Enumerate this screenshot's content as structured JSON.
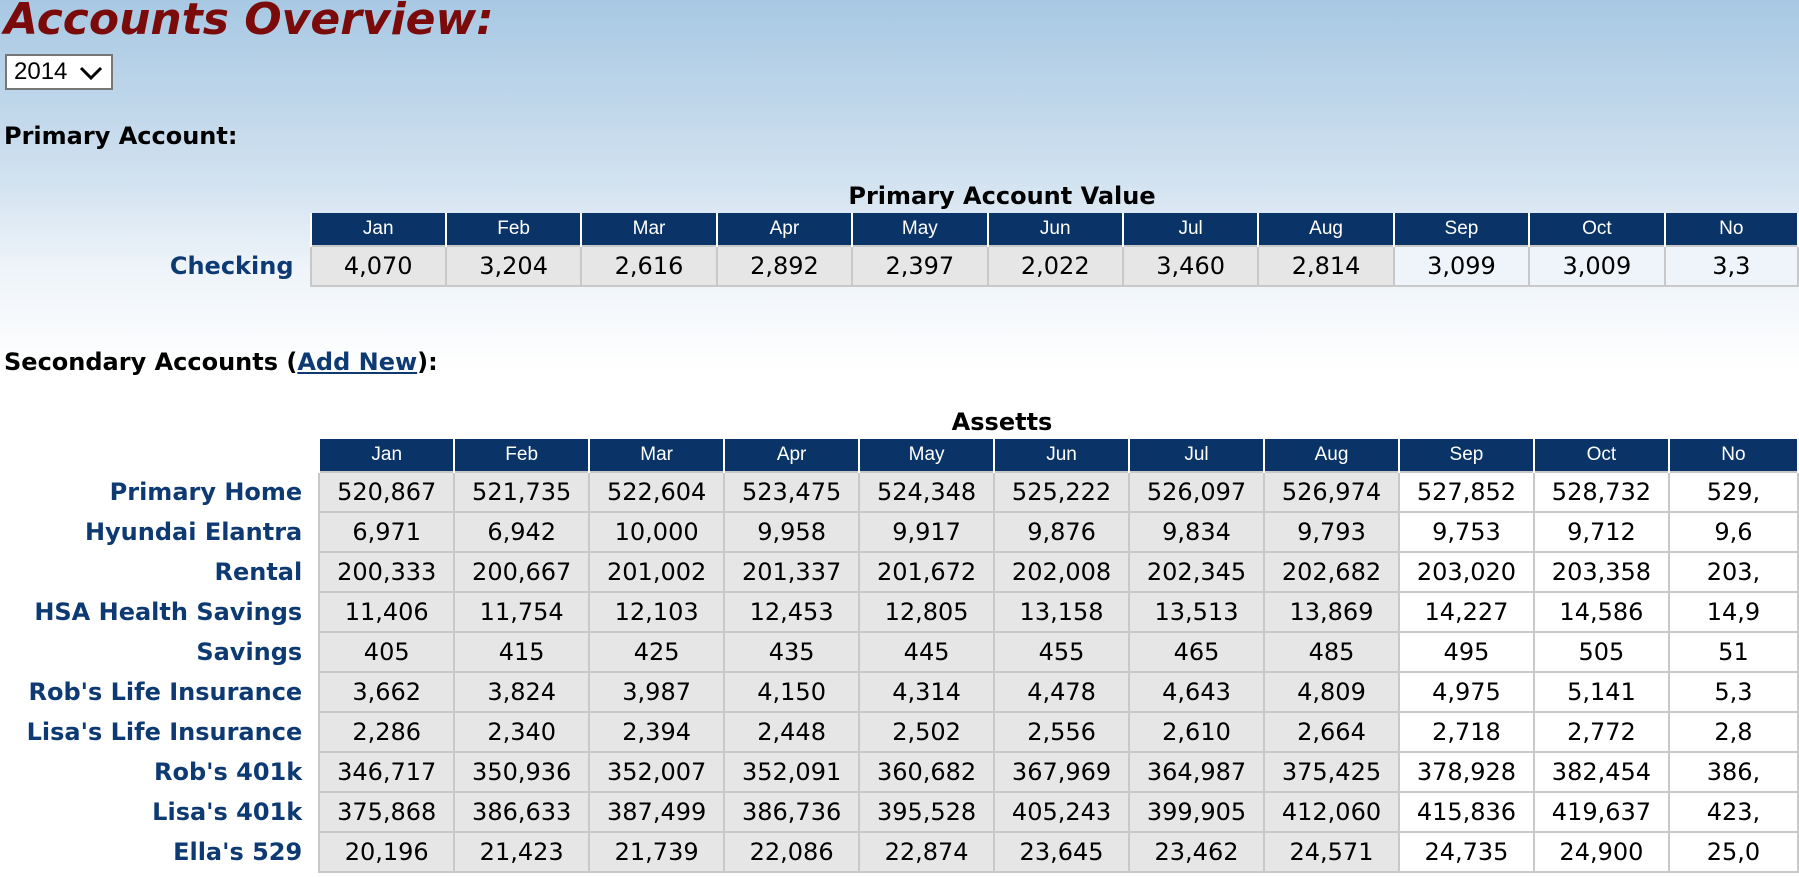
{
  "title": "Accounts Overview:",
  "year_select": {
    "value": "2014"
  },
  "primary": {
    "label": "Primary Account:",
    "table_title": "Primary Account Value",
    "months": [
      "Jan",
      "Feb",
      "Mar",
      "Apr",
      "May",
      "Jun",
      "Jul",
      "Aug",
      "Sep",
      "Oct",
      "No"
    ],
    "rows": [
      {
        "label": "Checking",
        "values": [
          "4,070",
          "3,204",
          "2,616",
          "2,892",
          "2,397",
          "2,022",
          "3,460",
          "2,814",
          "3,099",
          "3,009",
          "3,3"
        ]
      }
    ]
  },
  "secondary": {
    "label_prefix": "Secondary Accounts (",
    "add_new_link": "Add New",
    "label_suffix": "):",
    "table_title": "Assetts",
    "months": [
      "Jan",
      "Feb",
      "Mar",
      "Apr",
      "May",
      "Jun",
      "Jul",
      "Aug",
      "Sep",
      "Oct",
      "No"
    ],
    "rows": [
      {
        "label": "Primary Home",
        "values": [
          "520,867",
          "521,735",
          "522,604",
          "523,475",
          "524,348",
          "525,222",
          "526,097",
          "526,974",
          "527,852",
          "528,732",
          "529,"
        ]
      },
      {
        "label": "Hyundai Elantra",
        "values": [
          "6,971",
          "6,942",
          "10,000",
          "9,958",
          "9,917",
          "9,876",
          "9,834",
          "9,793",
          "9,753",
          "9,712",
          "9,6"
        ]
      },
      {
        "label": "Rental",
        "values": [
          "200,333",
          "200,667",
          "201,002",
          "201,337",
          "201,672",
          "202,008",
          "202,345",
          "202,682",
          "203,020",
          "203,358",
          "203,"
        ]
      },
      {
        "label": "HSA Health Savings",
        "values": [
          "11,406",
          "11,754",
          "12,103",
          "12,453",
          "12,805",
          "13,158",
          "13,513",
          "13,869",
          "14,227",
          "14,586",
          "14,9"
        ]
      },
      {
        "label": "Savings",
        "values": [
          "405",
          "415",
          "425",
          "435",
          "445",
          "455",
          "465",
          "485",
          "495",
          "505",
          "51"
        ]
      },
      {
        "label": "Rob's Life Insurance",
        "values": [
          "3,662",
          "3,824",
          "3,987",
          "4,150",
          "4,314",
          "4,478",
          "4,643",
          "4,809",
          "4,975",
          "5,141",
          "5,3"
        ]
      },
      {
        "label": "Lisa's Life Insurance",
        "values": [
          "2,286",
          "2,340",
          "2,394",
          "2,448",
          "2,502",
          "2,556",
          "2,610",
          "2,664",
          "2,718",
          "2,772",
          "2,8"
        ]
      },
      {
        "label": "Rob's 401k",
        "values": [
          "346,717",
          "350,936",
          "352,007",
          "352,091",
          "360,682",
          "367,969",
          "364,987",
          "375,425",
          "378,928",
          "382,454",
          "386,"
        ]
      },
      {
        "label": "Lisa's 401k",
        "values": [
          "375,868",
          "386,633",
          "387,499",
          "386,736",
          "395,528",
          "405,243",
          "399,905",
          "412,060",
          "415,836",
          "419,637",
          "423,"
        ]
      },
      {
        "label": "Ella's 529",
        "values": [
          "20,196",
          "21,423",
          "21,739",
          "22,086",
          "22,874",
          "23,645",
          "23,462",
          "24,571",
          "24,735",
          "24,900",
          "25,0"
        ]
      }
    ]
  },
  "colors": {
    "title": "#7b0a0a",
    "header_bg": "#0a3467",
    "row_label": "#0e3a73",
    "past_cell_bg": "#e6e6e6"
  },
  "icons": {
    "year_select_arrow": "chevron-down-icon"
  }
}
